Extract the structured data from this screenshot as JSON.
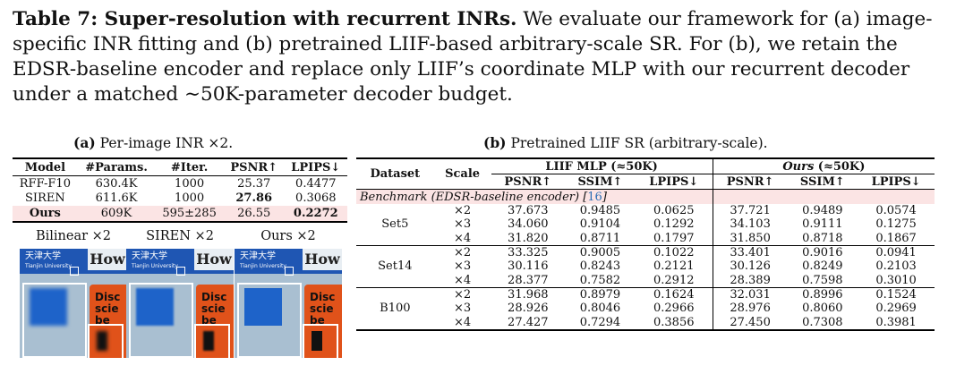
{
  "caption": {
    "label": "Table 7: Super-resolution with recurrent INRs.",
    "text": " We evaluate our framework for (a) image-specific INR fitting and (b) pretrained LIIF-based arbitrary-scale SR. For (b), we retain the EDSR-baseline encoder and replace only LIIF’s coordinate MLP with our recurrent decoder under a matched ∼50K-parameter decoder budget."
  },
  "table_a": {
    "label": "(a)",
    "title": "Per-image INR ×2.",
    "headers": [
      "Model",
      "#Params.",
      "#Iter.",
      "PSNR↑",
      "LPIPS↓"
    ],
    "rows": [
      [
        "RFF-F10",
        "630.4K",
        "1000",
        "25.37",
        "0.4477"
      ],
      [
        "SIREN",
        "611.6K",
        "1000",
        "27.86",
        "0.3068"
      ],
      [
        "Ours",
        "609K",
        "595±285",
        "26.55",
        "0.2272"
      ]
    ]
  },
  "thumbnails": {
    "labels": [
      "Bilinear ×2",
      "SIREN ×2",
      "Ours ×2"
    ],
    "logo_line1": "天津大学",
    "logo_line2": "Tianjin University",
    "how": "How",
    "orange_text": [
      "Disc",
      "scie",
      "be"
    ]
  },
  "table_b": {
    "label": "(b)",
    "title": "Pretrained LIIF SR (arbitrary-scale).",
    "col_dataset": "Dataset",
    "col_scale": "Scale",
    "group1": "LIIF MLP (≈50K)",
    "group2_italic": "Ours",
    "group2_rest": " (≈50K)",
    "metrics": [
      "PSNR↑",
      "SSIM↑",
      "LPIPS↓",
      "PSNR↑",
      "SSIM↑",
      "LPIPS↓"
    ],
    "benchmark_text": "Benchmark (EDSR-baseline encoder) [",
    "benchmark_cite": "16",
    "benchmark_close": "]",
    "groups": [
      {
        "dataset": "Set5",
        "rows": [
          [
            "×2",
            "37.673",
            "0.9485",
            "0.0625",
            "37.721",
            "0.9489",
            "0.0574"
          ],
          [
            "×3",
            "34.060",
            "0.9104",
            "0.1292",
            "34.103",
            "0.9111",
            "0.1275"
          ],
          [
            "×4",
            "31.820",
            "0.8711",
            "0.1797",
            "31.850",
            "0.8718",
            "0.1867"
          ]
        ]
      },
      {
        "dataset": "Set14",
        "rows": [
          [
            "×2",
            "33.325",
            "0.9005",
            "0.1022",
            "33.401",
            "0.9016",
            "0.0941"
          ],
          [
            "×3",
            "30.116",
            "0.8243",
            "0.2121",
            "30.126",
            "0.8249",
            "0.2103"
          ],
          [
            "×4",
            "28.377",
            "0.7582",
            "0.2912",
            "28.389",
            "0.7598",
            "0.3010"
          ]
        ]
      },
      {
        "dataset": "B100",
        "rows": [
          [
            "×2",
            "31.968",
            "0.8979",
            "0.1624",
            "32.031",
            "0.8996",
            "0.1524"
          ],
          [
            "×3",
            "28.926",
            "0.8046",
            "0.2966",
            "28.976",
            "0.8060",
            "0.2969"
          ],
          [
            "×4",
            "27.427",
            "0.7294",
            "0.3856",
            "27.450",
            "0.7308",
            "0.3981"
          ]
        ]
      }
    ]
  }
}
